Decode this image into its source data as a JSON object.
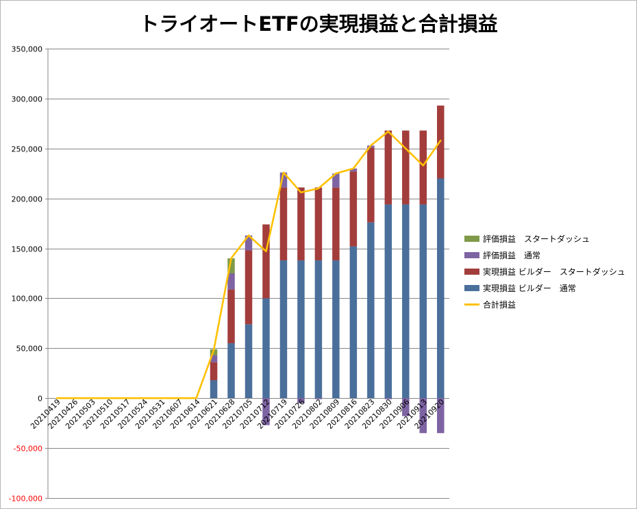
{
  "chart_data": {
    "type": "bar",
    "title": "トライオートETFの実現損益と合計損益",
    "xlabel": "",
    "ylabel": "",
    "ylim": [
      -100000,
      350000
    ],
    "yticks": [
      "350,000",
      "300,000",
      "250,000",
      "200,000",
      "150,000",
      "100,000",
      "50,000",
      "0",
      "-50,000",
      "-100,000"
    ],
    "ytick_values": [
      350000,
      300000,
      250000,
      200000,
      150000,
      100000,
      50000,
      0,
      -50000,
      -100000
    ],
    "negative_tick_color": "#ff0000",
    "grid": true,
    "stacked": true,
    "legend_position": "right",
    "categories": [
      "20210419",
      "20210426",
      "20210503",
      "20210510",
      "20210517",
      "20210524",
      "20210531",
      "20210607",
      "20210614",
      "20210621",
      "20210628",
      "20210705",
      "20210712",
      "20210719",
      "20210726",
      "20210802",
      "20210809",
      "20210816",
      "20210823",
      "20210830",
      "20210906",
      "20210913",
      "20210920"
    ],
    "series": [
      {
        "name": "実現損益 ビルダー　通常",
        "type": "bar",
        "color": "#4a6f9b",
        "values": [
          0,
          0,
          0,
          0,
          0,
          0,
          0,
          0,
          0,
          18000,
          55000,
          74000,
          100000,
          138000,
          138000,
          138000,
          138000,
          152000,
          176000,
          194000,
          194000,
          194000,
          220000
        ]
      },
      {
        "name": "実現損益 ビルダー　スタートダッシュ",
        "type": "bar",
        "color": "#a23d3c",
        "values": [
          0,
          0,
          0,
          0,
          0,
          0,
          0,
          0,
          0,
          18000,
          54000,
          74000,
          74000,
          73000,
          73000,
          73000,
          73000,
          75000,
          75000,
          74000,
          74000,
          74000,
          73000
        ]
      },
      {
        "name": "評価損益　通常",
        "type": "bar",
        "color": "#7e63a3",
        "values": [
          0,
          0,
          0,
          0,
          0,
          0,
          0,
          0,
          0,
          7000,
          16000,
          15000,
          -27000,
          15000,
          -5000,
          -1000,
          14000,
          3000,
          2000,
          -1000,
          -18000,
          -35000,
          -35000
        ]
      },
      {
        "name": "評価損益　スタートダッシュ",
        "type": "bar",
        "color": "#7f9a48",
        "values": [
          0,
          0,
          0,
          0,
          0,
          0,
          0,
          0,
          0,
          6000,
          15000,
          0,
          0,
          0,
          0,
          0,
          0,
          0,
          0,
          0,
          0,
          0,
          0
        ]
      },
      {
        "name": "合計損益",
        "type": "line",
        "color": "#ffc000",
        "values": [
          0,
          0,
          0,
          0,
          0,
          0,
          0,
          0,
          0,
          48000,
          140000,
          163000,
          147000,
          226000,
          206000,
          210000,
          225000,
          230000,
          253000,
          267000,
          250000,
          233000,
          258000
        ]
      }
    ]
  }
}
